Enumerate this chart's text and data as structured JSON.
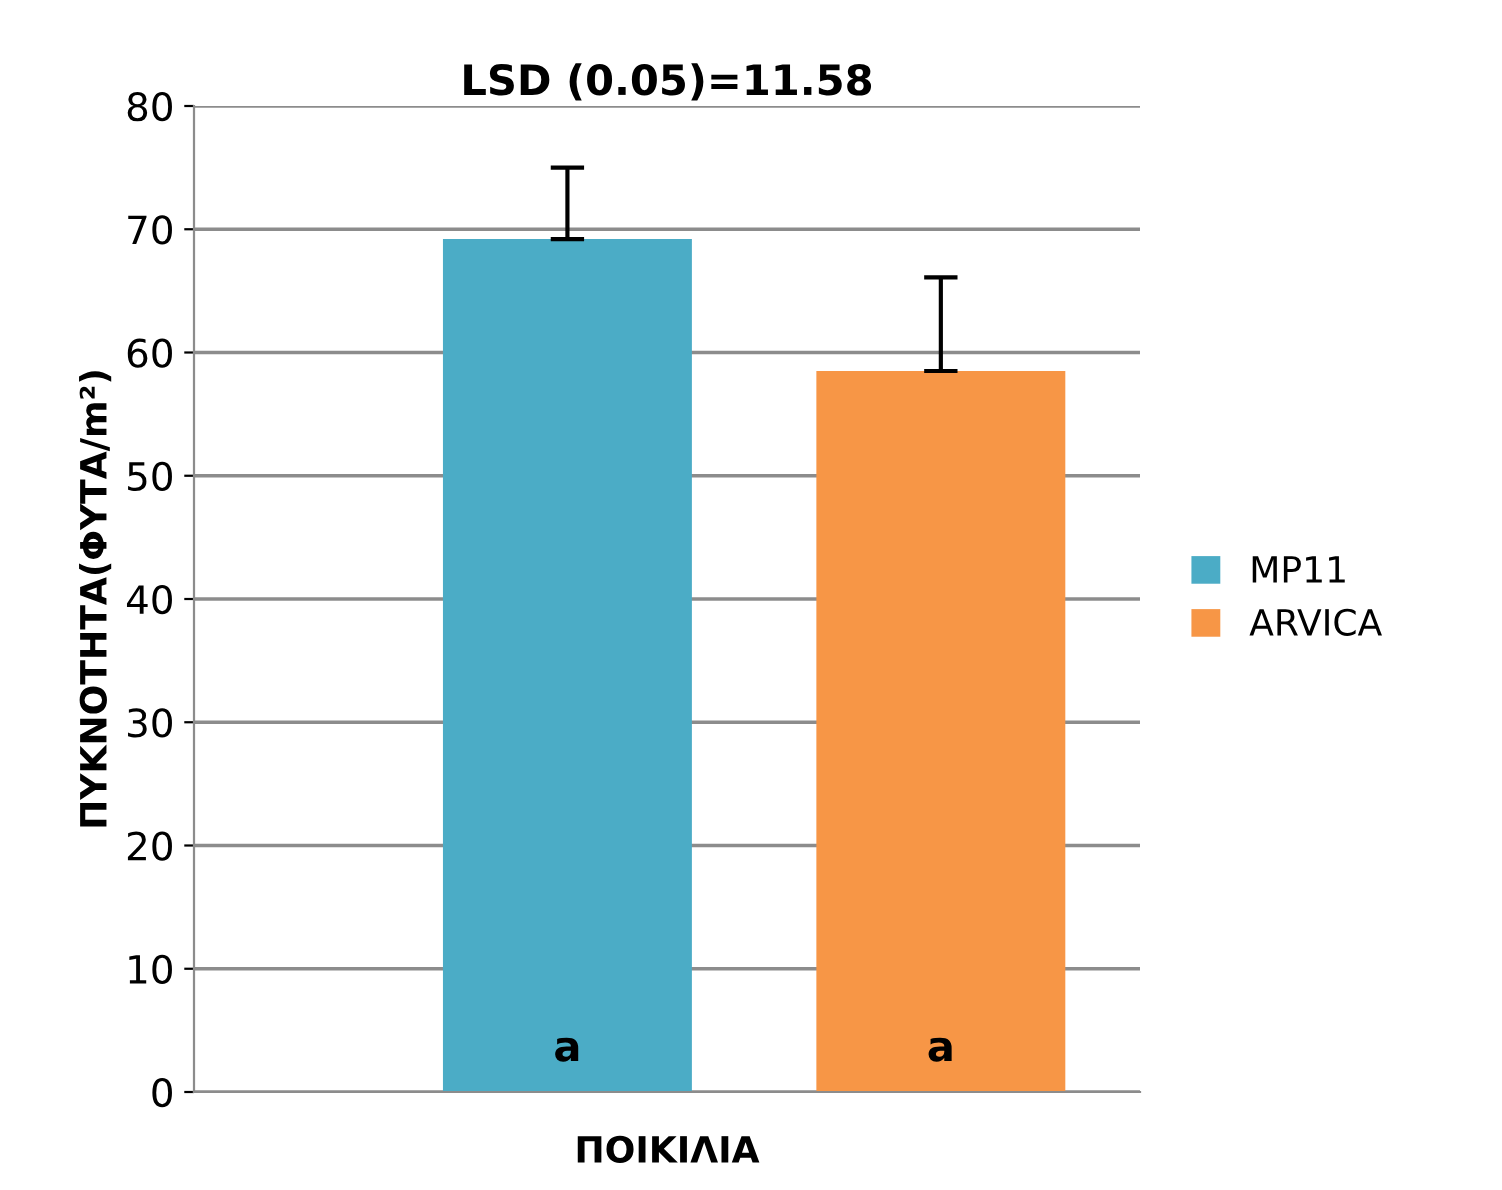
{
  "chart_data": {
    "type": "bar",
    "title": "LSD (0.05)=11.58",
    "xlabel": "ΠΟΙΚΙΛΙΑ",
    "ylabel": "ΠΥΚΝΟΤΗΤΑ(ΦΥΤΑ/m²)",
    "categories": [
      null
    ],
    "series": [
      {
        "name": "MP11",
        "color": "#4bacc6",
        "values": [
          69.2
        ],
        "errors": [
          [
            69.2,
            75.0
          ]
        ],
        "value_labels": [
          "a"
        ]
      },
      {
        "name": "ARVICA",
        "color": "#f79646",
        "values": [
          58.5
        ],
        "errors": [
          [
            58.5,
            66.1
          ]
        ],
        "value_labels": [
          "a"
        ]
      }
    ],
    "ylim": [
      0,
      80
    ],
    "yticks": [
      0,
      10,
      20,
      30,
      40,
      50,
      60,
      70,
      80
    ],
    "grid": "y",
    "legend": "right"
  }
}
